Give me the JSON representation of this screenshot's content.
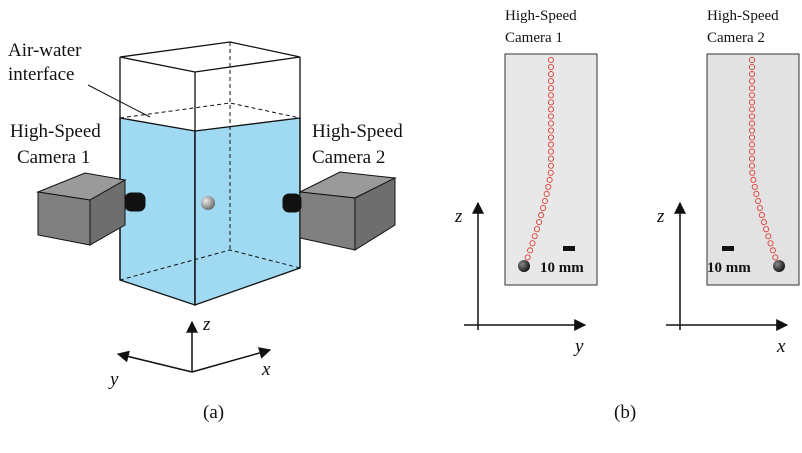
{
  "panel_a": {
    "interface_label": [
      "Air-water",
      "interface"
    ],
    "camera1_label": [
      "High-Speed",
      "Camera 1"
    ],
    "camera2_label": [
      "High-Speed",
      "Camera 2"
    ],
    "axes": {
      "z": "z",
      "y": "y",
      "x": "x"
    },
    "caption": "(a)"
  },
  "panel_b": {
    "views": [
      {
        "camera_label": [
          "High-Speed",
          "Camera 1"
        ],
        "scale_label": "10 mm",
        "axes": {
          "vertical": "z",
          "horizontal": "y"
        }
      },
      {
        "camera_label": [
          "High-Speed",
          "Camera 2"
        ],
        "scale_label": "10 mm",
        "axes": {
          "vertical": "z",
          "horizontal": "x"
        }
      }
    ],
    "caption": "(b)"
  }
}
